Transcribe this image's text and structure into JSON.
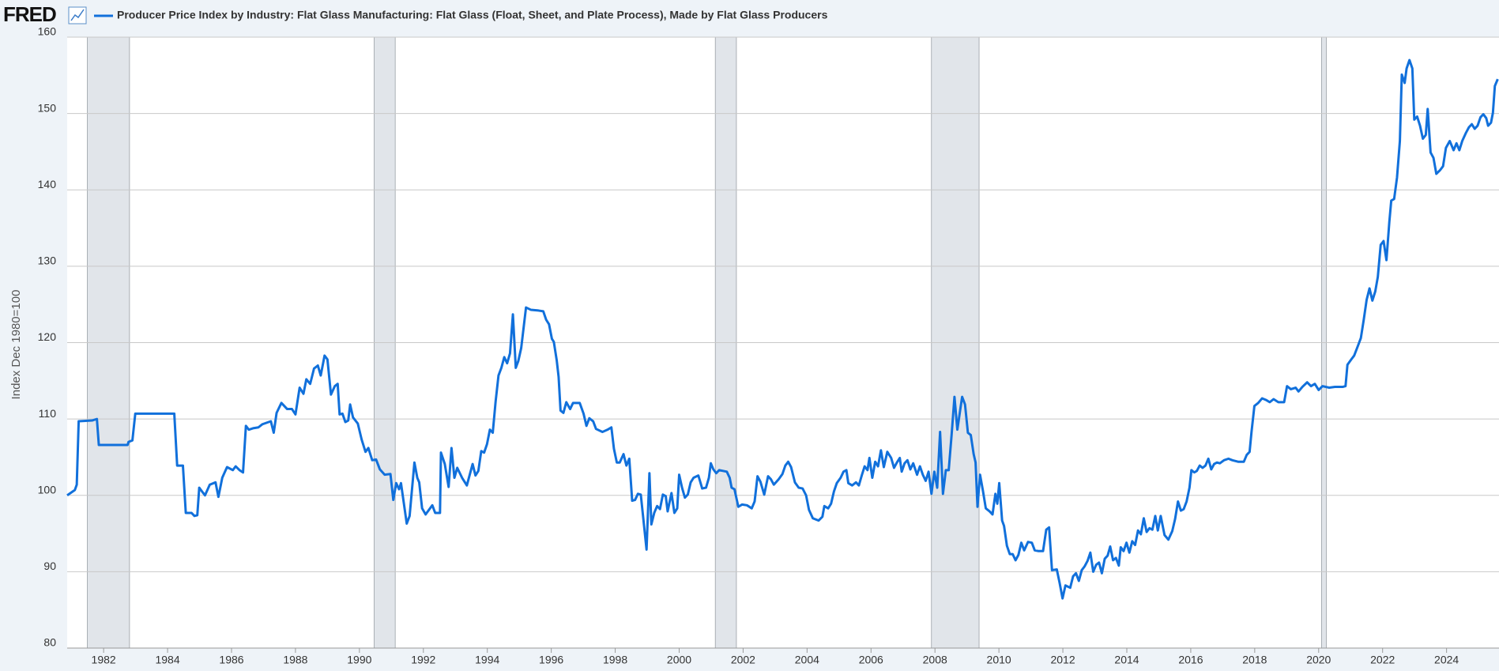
{
  "logo": "FRED",
  "chart_data": {
    "type": "line",
    "ylabel": "Index Dec 1980=100",
    "xlim": [
      1980.86,
      2025.64
    ],
    "xticks": [
      1982,
      1984,
      1986,
      1988,
      1990,
      1992,
      1994,
      1996,
      1998,
      2000,
      2002,
      2004,
      2006,
      2008,
      2010,
      2012,
      2014,
      2016,
      2018,
      2020,
      2022,
      2024
    ],
    "ylim": [
      80,
      160
    ],
    "yticks": [
      80,
      90,
      100,
      110,
      120,
      130,
      140,
      150,
      160
    ],
    "grid": true,
    "recessions": [
      [
        1981.49,
        1982.81
      ],
      [
        1990.46,
        1991.12
      ],
      [
        2001.13,
        2001.79
      ],
      [
        2007.89,
        2009.38
      ],
      [
        2020.09,
        2020.24
      ]
    ],
    "recession_color": "#e1e5ea",
    "x": [
      1980.86,
      1981.1,
      1981.16,
      1981.22,
      1981.64,
      1981.79,
      1981.85,
      1982.75,
      1982.78,
      1982.9,
      1982.99,
      1984.21,
      1984.3,
      1984.48,
      1984.57,
      1984.75,
      1984.84,
      1984.93,
      1984.99,
      1985.17,
      1985.32,
      1985.5,
      1985.59,
      1985.71,
      1985.86,
      1986.04,
      1986.13,
      1986.25,
      1986.36,
      1986.45,
      1986.54,
      1986.69,
      1986.84,
      1986.96,
      1987.23,
      1987.32,
      1987.41,
      1987.56,
      1987.74,
      1987.89,
      1988.0,
      1988.13,
      1988.25,
      1988.34,
      1988.46,
      1988.58,
      1988.7,
      1988.79,
      1988.91,
      1989.0,
      1989.11,
      1989.23,
      1989.32,
      1989.38,
      1989.47,
      1989.56,
      1989.65,
      1989.71,
      1989.8,
      1989.95,
      1990.07,
      1990.19,
      1990.28,
      1990.4,
      1990.52,
      1990.64,
      1990.79,
      1990.97,
      1991.06,
      1991.15,
      1991.24,
      1991.3,
      1991.48,
      1991.57,
      1991.72,
      1991.81,
      1991.87,
      1991.96,
      1992.07,
      1992.28,
      1992.37,
      1992.52,
      1992.55,
      1992.67,
      1992.79,
      1992.88,
      1992.97,
      1993.06,
      1993.21,
      1993.36,
      1993.54,
      1993.63,
      1993.72,
      1993.81,
      1993.9,
      1993.99,
      1994.08,
      1994.17,
      1994.26,
      1994.35,
      1994.44,
      1994.53,
      1994.62,
      1994.71,
      1994.8,
      1994.89,
      1994.97,
      1995.06,
      1995.21,
      1995.36,
      1995.6,
      1995.75,
      1995.84,
      1995.93,
      1996.02,
      1996.08,
      1996.17,
      1996.23,
      1996.29,
      1996.38,
      1996.47,
      1996.59,
      1996.68,
      1996.89,
      1997.01,
      1997.1,
      1997.19,
      1997.31,
      1997.4,
      1997.6,
      1997.76,
      1997.88,
      1997.96,
      1998.05,
      1998.14,
      1998.26,
      1998.35,
      1998.44,
      1998.53,
      1998.62,
      1998.71,
      1998.8,
      1998.98,
      1999.07,
      1999.13,
      1999.22,
      1999.31,
      1999.4,
      1999.49,
      1999.58,
      1999.64,
      1999.76,
      1999.85,
      1999.94,
      2000.0,
      2000.09,
      2000.18,
      2000.27,
      2000.36,
      2000.45,
      2000.6,
      2000.72,
      2000.84,
      2000.93,
      2000.99,
      2001.07,
      2001.16,
      2001.25,
      2001.37,
      2001.49,
      2001.58,
      2001.64,
      2001.73,
      2001.85,
      2001.97,
      2002.12,
      2002.27,
      2002.36,
      2002.45,
      2002.54,
      2002.66,
      2002.78,
      2002.87,
      2002.96,
      2003.11,
      2003.23,
      2003.32,
      2003.41,
      2003.5,
      2003.62,
      2003.74,
      2003.86,
      2003.97,
      2004.06,
      2004.18,
      2004.36,
      2004.48,
      2004.54,
      2004.66,
      2004.75,
      2004.84,
      2004.93,
      2005.05,
      2005.14,
      2005.23,
      2005.29,
      2005.41,
      2005.53,
      2005.62,
      2005.71,
      2005.8,
      2005.89,
      2005.95,
      2006.04,
      2006.13,
      2006.22,
      2006.31,
      2006.4,
      2006.51,
      2006.63,
      2006.72,
      2006.81,
      2006.9,
      2006.96,
      2007.05,
      2007.14,
      2007.23,
      2007.32,
      2007.44,
      2007.53,
      2007.62,
      2007.71,
      2007.8,
      2007.89,
      2007.98,
      2008.07,
      2008.16,
      2008.25,
      2008.34,
      2008.43,
      2008.52,
      2008.61,
      2008.7,
      2008.79,
      2008.85,
      2008.94,
      2009.03,
      2009.12,
      2009.21,
      2009.27,
      2009.33,
      2009.41,
      2009.5,
      2009.59,
      2009.71,
      2009.8,
      2009.89,
      2009.95,
      2010.01,
      2010.1,
      2010.16,
      2010.25,
      2010.34,
      2010.43,
      2010.52,
      2010.61,
      2010.7,
      2010.79,
      2010.91,
      2011.03,
      2011.12,
      2011.24,
      2011.38,
      2011.48,
      2011.57,
      2011.66,
      2011.81,
      2011.9,
      2011.99,
      2012.08,
      2012.23,
      2012.32,
      2012.41,
      2012.5,
      2012.59,
      2012.68,
      2012.77,
      2012.86,
      2012.95,
      2013.04,
      2013.13,
      2013.22,
      2013.31,
      2013.4,
      2013.48,
      2013.57,
      2013.66,
      2013.75,
      2013.81,
      2013.9,
      2013.99,
      2014.08,
      2014.17,
      2014.26,
      2014.35,
      2014.44,
      2014.53,
      2014.62,
      2014.71,
      2014.8,
      2014.89,
      2014.97,
      2015.06,
      2015.18,
      2015.3,
      2015.42,
      2015.51,
      2015.6,
      2015.69,
      2015.78,
      2015.87,
      2015.96,
      2016.02,
      2016.11,
      2016.19,
      2016.28,
      2016.37,
      2016.46,
      2016.55,
      2016.64,
      2016.73,
      2016.82,
      2016.91,
      2017.04,
      2017.18,
      2017.3,
      2017.48,
      2017.66,
      2017.75,
      2017.84,
      2017.9,
      2017.99,
      2018.11,
      2018.23,
      2018.35,
      2018.47,
      2018.59,
      2018.74,
      2018.92,
      2019.01,
      2019.13,
      2019.28,
      2019.37,
      2019.49,
      2019.64,
      2019.76,
      2019.88,
      2020.0,
      2020.12,
      2020.33,
      2020.51,
      2020.75,
      2020.84,
      2020.9,
      2021.02,
      2021.11,
      2021.23,
      2021.32,
      2021.41,
      2021.5,
      2021.59,
      2021.68,
      2021.77,
      2021.85,
      2021.94,
      2022.03,
      2022.12,
      2022.21,
      2022.27,
      2022.36,
      2022.45,
      2022.54,
      2022.6,
      2022.69,
      2022.75,
      2022.84,
      2022.93,
      2022.99,
      2023.08,
      2023.17,
      2023.26,
      2023.35,
      2023.41,
      2023.5,
      2023.59,
      2023.68,
      2023.8,
      2023.89,
      2023.98,
      2024.1,
      2024.22,
      2024.31,
      2024.4,
      2024.49,
      2024.61,
      2024.7,
      2024.79,
      2024.88,
      2024.97,
      2025.06,
      2025.15,
      2025.24,
      2025.3,
      2025.39,
      2025.45,
      2025.51,
      2025.6
    ],
    "series": [
      {
        "name": "Producer Price Index by Industry: Flat Glass Manufacturing: Flat Glass (Float, Sheet, and Plate Process), Made by Flat Glass Producers",
        "color": "#1170db",
        "values": [
          100,
          100.7,
          101.4,
          109.7,
          109.8,
          110,
          106.6,
          106.6,
          107,
          107.2,
          110.7,
          110.7,
          103.9,
          103.9,
          97.7,
          97.7,
          97.3,
          97.4,
          101,
          100,
          101.4,
          101.7,
          99.8,
          102.3,
          103.7,
          103.3,
          103.8,
          103.3,
          103,
          109.1,
          108.6,
          108.8,
          108.9,
          109.3,
          109.7,
          108.2,
          110.8,
          112.1,
          111.3,
          111.3,
          110.6,
          114.1,
          113.3,
          115.2,
          114.6,
          116.6,
          117,
          115.7,
          118.3,
          117.8,
          113.2,
          114.3,
          114.6,
          110.6,
          110.7,
          109.6,
          109.8,
          111.9,
          110.2,
          109.4,
          107.3,
          105.7,
          106.2,
          104.6,
          104.7,
          103.4,
          102.7,
          102.8,
          99.4,
          101.6,
          100.8,
          101.6,
          96.3,
          97.3,
          104.3,
          102.3,
          101.7,
          98.3,
          97.5,
          98.7,
          97.7,
          97.7,
          105.6,
          104.1,
          101.1,
          106.2,
          102.3,
          103.6,
          102.3,
          101.3,
          104.1,
          102.6,
          103.2,
          105.8,
          105.6,
          106.7,
          108.6,
          108.2,
          112.3,
          115.7,
          116.7,
          118.1,
          117.3,
          118.6,
          123.7,
          116.7,
          117.6,
          119.3,
          124.6,
          124.3,
          124.2,
          124.1,
          123,
          122.4,
          120.5,
          120.1,
          117.7,
          115.5,
          111.1,
          110.8,
          112.2,
          111.3,
          112.1,
          112.1,
          110.7,
          109.1,
          110.1,
          109.7,
          108.7,
          108.3,
          108.6,
          108.9,
          106.1,
          104.3,
          104.3,
          105.4,
          103.9,
          104.8,
          99.3,
          99.4,
          100.2,
          100.1,
          92.9,
          102.9,
          96.2,
          97.7,
          98.6,
          98.2,
          100.1,
          99.9,
          97.9,
          100.3,
          97.7,
          98.3,
          102.7,
          101,
          99.7,
          100.1,
          101.7,
          102.3,
          102.6,
          100.9,
          101,
          102.3,
          104.2,
          103.4,
          102.9,
          103.3,
          103.2,
          103.1,
          102.3,
          101,
          100.8,
          98.5,
          98.8,
          98.7,
          98.3,
          99.2,
          102.5,
          101.8,
          100.1,
          102.5,
          102.1,
          101.4,
          102.1,
          102.8,
          103.9,
          104.4,
          103.7,
          101.7,
          101,
          100.9,
          100,
          98.1,
          97,
          96.7,
          97.2,
          98.6,
          98.3,
          98.9,
          100.5,
          101.6,
          102.3,
          103.1,
          103.3,
          101.6,
          101.3,
          101.7,
          101.3,
          102.6,
          103.8,
          103.3,
          104.9,
          102.3,
          104.4,
          103.8,
          105.9,
          103.7,
          105.7,
          104.9,
          103.6,
          104.3,
          104.9,
          103.1,
          104.2,
          104.6,
          103.4,
          104.2,
          102.7,
          103.8,
          102.7,
          101.9,
          103.1,
          100.2,
          103.1,
          101,
          108.3,
          100.2,
          103.3,
          103.3,
          107.9,
          112.9,
          108.6,
          111.2,
          112.9,
          111.9,
          108.2,
          107.9,
          105.4,
          104.3,
          98.5,
          102.7,
          100.6,
          98.3,
          97.9,
          97.5,
          100.2,
          98.9,
          101.6,
          96.7,
          96,
          93.4,
          92.3,
          92.3,
          91.5,
          92.2,
          93.8,
          92.8,
          93.9,
          93.8,
          92.8,
          92.7,
          92.7,
          95.5,
          95.8,
          90.2,
          90.3,
          88.5,
          86.5,
          88.2,
          87.9,
          89.4,
          89.8,
          88.8,
          90.2,
          90.7,
          91.4,
          92.5,
          90,
          90.9,
          91.2,
          89.8,
          91.7,
          92.1,
          93.3,
          91.5,
          91.8,
          90.8,
          93.2,
          92.7,
          93.8,
          92.5,
          94,
          93.5,
          95.4,
          94.9,
          97,
          95.2,
          95.7,
          95.5,
          97.3,
          95.4,
          97.3,
          94.8,
          94.2,
          95.3,
          96.9,
          99.2,
          98,
          98.2,
          99.2,
          101,
          103.3,
          103,
          103.2,
          103.9,
          103.6,
          103.9,
          104.8,
          103.4,
          104.1,
          104.3,
          104.2,
          104.6,
          104.8,
          104.6,
          104.4,
          104.4,
          105.3,
          105.7,
          108.3,
          111.7,
          112.1,
          112.7,
          112.5,
          112.2,
          112.6,
          112.2,
          112.2,
          114.3,
          113.9,
          114.1,
          113.6,
          114.2,
          114.8,
          114.3,
          114.6,
          113.8,
          114.3,
          114.1,
          114.2,
          114.2,
          114.3,
          117.1,
          117.8,
          118.3,
          119.6,
          120.6,
          123,
          125.6,
          127.1,
          125.5,
          126.7,
          128.6,
          132.8,
          133.3,
          130.8,
          135.8,
          138.6,
          138.8,
          141.6,
          146.4,
          155.1,
          154,
          155.9,
          157,
          155.9,
          149.2,
          149.6,
          148.4,
          146.7,
          147.2,
          150.6,
          144.9,
          144.2,
          142.1,
          142.6,
          143.1,
          145.5,
          146.4,
          145.2,
          146.1,
          145.2,
          146.4,
          147.5,
          148.2,
          148.6,
          148,
          148.4,
          149.5,
          149.9,
          149.4,
          148.4,
          148.8,
          150.1,
          153.6,
          154.5
        ]
      }
    ]
  }
}
